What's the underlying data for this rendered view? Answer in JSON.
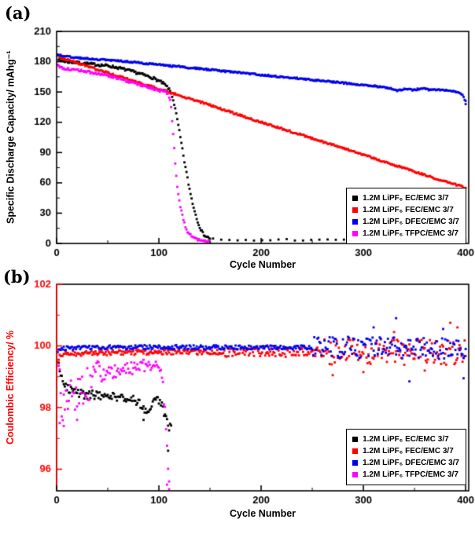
{
  "figure": {
    "background": "#ffffff"
  },
  "chart_data": [
    {
      "type": "scatter",
      "panel_label": "(a)",
      "xlabel": "Cycle Number",
      "ylabel": "Specific Discharge Capacity/ mAhg⁻¹",
      "ylabel_color": "#000000",
      "xlim": [
        0,
        403
      ],
      "ylim": [
        0,
        210
      ],
      "xticks": [
        0,
        100,
        200,
        300,
        400
      ],
      "yticks": [
        0,
        30,
        60,
        90,
        120,
        150,
        180,
        210
      ],
      "xminor": 50,
      "yminor": 15,
      "axis_color": "#000000",
      "yaxis_color": "#000000",
      "xtick_color": "#000000",
      "ytick_color": "#000000",
      "legend": [
        {
          "label": "1.2M LiPF₆ EC/EMC 3/7",
          "color": "#000000"
        },
        {
          "label": "1.2M LiPF₆ FEC/EMC 3/7",
          "color": "#ff0000"
        },
        {
          "label": "1.2M LiPF₆ DFEC/EMC 3/7",
          "color": "#0000ee"
        },
        {
          "label": "1.2M LiPF₆ TFPC/EMC 3/7",
          "color": "#ff00ff"
        }
      ],
      "series": [
        {
          "name": "EC/EMC",
          "color": "#000000",
          "anchors": [
            [
              1,
              188
            ],
            [
              2,
              183
            ],
            [
              4,
              181
            ],
            [
              10,
              180
            ],
            [
              20,
              179
            ],
            [
              30,
              178
            ],
            [
              40,
              177
            ],
            [
              50,
              176
            ],
            [
              60,
              174
            ],
            [
              68,
              172
            ],
            [
              75,
              170
            ],
            [
              82,
              168
            ],
            [
              88,
              166
            ],
            [
              94,
              164
            ],
            [
              100,
              161
            ],
            [
              105,
              158
            ],
            [
              108,
              155
            ],
            [
              111,
              151
            ],
            [
              113,
              146
            ],
            [
              115,
              138
            ],
            [
              117,
              128
            ],
            [
              119,
              117
            ],
            [
              121,
              105
            ],
            [
              123,
              93
            ],
            [
              125,
              81
            ],
            [
              127,
              70
            ],
            [
              129,
              59
            ],
            [
              131,
              49
            ],
            [
              133,
              40
            ],
            [
              135,
              32
            ],
            [
              137,
              25
            ],
            [
              139,
              19
            ],
            [
              141,
              14
            ],
            [
              143,
              10
            ],
            [
              146,
              7
            ],
            [
              150,
              5
            ],
            [
              155,
              4
            ],
            [
              165,
              3
            ],
            [
              180,
              3
            ],
            [
              200,
              3
            ],
            [
              220,
              4
            ],
            [
              250,
              3
            ],
            [
              281,
              4
            ]
          ],
          "segments": [
            {
              "from": 1,
              "to": 150,
              "step": 1,
              "jitter": 1.3
            },
            {
              "from": 153,
              "to": 281,
              "step": 8,
              "jitter": 0.8
            }
          ],
          "extra_points": []
        },
        {
          "name": "FEC/EMC",
          "color": "#ff0000",
          "anchors": [
            [
              1,
              186
            ],
            [
              3,
              184
            ],
            [
              10,
              182
            ],
            [
              50,
              169
            ],
            [
              100,
              153
            ],
            [
              150,
              137
            ],
            [
              200,
              120
            ],
            [
              250,
              104
            ],
            [
              300,
              88
            ],
            [
              350,
              71
            ],
            [
              400,
              55
            ]
          ],
          "segments": [
            {
              "from": 1,
              "to": 400,
              "step": 1,
              "jitter": 0.9
            }
          ],
          "extra_points": []
        },
        {
          "name": "DFEC/EMC",
          "color": "#0000ee",
          "anchors": [
            [
              1,
              187
            ],
            [
              10,
              185
            ],
            [
              30,
              183
            ],
            [
              60,
              181
            ],
            [
              100,
              177
            ],
            [
              140,
              173
            ],
            [
              180,
              169
            ],
            [
              220,
              165
            ],
            [
              260,
              161
            ],
            [
              290,
              158
            ],
            [
              310,
              156
            ],
            [
              325,
              154
            ],
            [
              333,
              151
            ],
            [
              340,
              153
            ],
            [
              350,
              152
            ],
            [
              358,
              154
            ],
            [
              365,
              152
            ],
            [
              375,
              152
            ],
            [
              385,
              151
            ],
            [
              392,
              150
            ],
            [
              397,
              147
            ],
            [
              400,
              141
            ]
          ],
          "segments": [
            {
              "from": 1,
              "to": 400,
              "step": 1,
              "jitter": 0.8
            }
          ],
          "extra_points": [
            [
              400,
              138
            ]
          ]
        },
        {
          "name": "TFPC/EMC",
          "color": "#ff00ff",
          "anchors": [
            [
              1,
              177
            ],
            [
              3,
              175
            ],
            [
              8,
              173
            ],
            [
              15,
              172
            ],
            [
              25,
              171
            ],
            [
              35,
              169
            ],
            [
              45,
              167
            ],
            [
              55,
              165
            ],
            [
              65,
              162
            ],
            [
              75,
              159
            ],
            [
              85,
              156
            ],
            [
              92,
              154
            ],
            [
              98,
              152
            ],
            [
              103,
              151
            ],
            [
              107,
              150
            ],
            [
              109,
              148
            ],
            [
              111,
              143
            ],
            [
              112,
              135
            ],
            [
              113,
              122
            ],
            [
              114,
              108
            ],
            [
              115,
              94
            ],
            [
              116,
              80
            ],
            [
              117,
              67
            ],
            [
              118,
              55
            ],
            [
              120,
              42
            ],
            [
              122,
              32
            ],
            [
              124,
              24
            ],
            [
              126,
              17
            ],
            [
              128,
              12
            ],
            [
              131,
              8
            ],
            [
              134,
              6
            ],
            [
              138,
              4
            ],
            [
              143,
              3
            ],
            [
              150,
              2
            ]
          ],
          "segments": [
            {
              "from": 1,
              "to": 150,
              "step": 1,
              "jitter": 1.2
            }
          ],
          "extra_points": []
        }
      ]
    },
    {
      "type": "scatter",
      "panel_label": "(b)",
      "xlabel": "Cycle Number",
      "ylabel": "Coulombic Efficiency/ %",
      "ylabel_color": "#ff0000",
      "xlim": [
        0,
        403
      ],
      "ylim": [
        95.3,
        102
      ],
      "xticks": [
        0,
        100,
        200,
        300,
        400
      ],
      "yticks": [
        96,
        98,
        100,
        102
      ],
      "xminor": 50,
      "yminor": 1,
      "axis_color": "#000000",
      "yaxis_color": "#ff0000",
      "xtick_color": "#000000",
      "ytick_color": "#ff0000",
      "legend": [
        {
          "label": "1.2M LiPF₆ EC/EMC 3/7",
          "color": "#000000"
        },
        {
          "label": "1.2M LiPF₆ FEC/EMC 3/7",
          "color": "#ff0000"
        },
        {
          "label": "1.2M LiPF₆ DFEC/EMC 3/7",
          "color": "#0000ee"
        },
        {
          "label": "1.2M LiPF₆ TFPC/EMC 3/7",
          "color": "#ff00ff"
        }
      ],
      "series": [
        {
          "name": "EC/EMC",
          "color": "#000000",
          "anchors": [
            [
              2,
              99.35
            ],
            [
              4,
              99.15
            ],
            [
              6,
              98.95
            ],
            [
              9,
              98.75
            ],
            [
              12,
              98.6
            ],
            [
              16,
              98.5
            ],
            [
              22,
              98.45
            ],
            [
              30,
              98.4
            ],
            [
              40,
              98.42
            ],
            [
              50,
              98.38
            ],
            [
              58,
              98.35
            ],
            [
              66,
              98.3
            ],
            [
              74,
              98.28
            ],
            [
              80,
              98.2
            ],
            [
              85,
              98.0
            ],
            [
              89,
              97.85
            ],
            [
              93,
              98.05
            ],
            [
              97,
              98.25
            ],
            [
              101,
              98.2
            ],
            [
              104,
              97.95
            ],
            [
              106,
              97.7
            ],
            [
              108,
              97.5
            ],
            [
              110,
              97.3
            ],
            [
              112,
              97.45
            ]
          ],
          "segments": [
            {
              "from": 2,
              "to": 112,
              "step": 1,
              "jitter": 0.14
            }
          ],
          "extra_points": [
            [
              109,
              96.6
            ],
            [
              85,
              97.6
            ]
          ]
        },
        {
          "name": "FEC/EMC",
          "color": "#ff0000",
          "anchors": [
            [
              1,
              99.55
            ],
            [
              3,
              99.7
            ],
            [
              10,
              99.75
            ],
            [
              50,
              99.78
            ],
            [
              100,
              99.8
            ],
            [
              150,
              99.8
            ],
            [
              200,
              99.8
            ],
            [
              250,
              99.8
            ],
            [
              300,
              99.8
            ],
            [
              350,
              99.8
            ],
            [
              400,
              99.8
            ]
          ],
          "segments": [
            {
              "from": 1,
              "to": 160,
              "step": 1,
              "jitter": 0.08
            },
            {
              "from": 161,
              "to": 260,
              "step": 1,
              "jitter": 0.16
            },
            {
              "from": 261,
              "to": 400,
              "step": 1,
              "jitter": 0.42
            }
          ],
          "extra_points": [
            [
              270,
              99.05
            ],
            [
              300,
              99.15
            ],
            [
              330,
              100.45
            ],
            [
              360,
              99.2
            ],
            [
              385,
              100.75
            ],
            [
              392,
              100.6
            ]
          ]
        },
        {
          "name": "DFEC/EMC",
          "color": "#0000ee",
          "anchors": [
            [
              1,
              99.85
            ],
            [
              5,
              99.92
            ],
            [
              20,
              99.95
            ],
            [
              100,
              99.96
            ],
            [
              200,
              99.95
            ],
            [
              300,
              99.95
            ],
            [
              400,
              99.92
            ]
          ],
          "segments": [
            {
              "from": 1,
              "to": 250,
              "step": 1,
              "jitter": 0.07
            },
            {
              "from": 251,
              "to": 400,
              "step": 1,
              "jitter": 0.35
            }
          ],
          "extra_points": [
            [
              310,
              100.6
            ],
            [
              332,
              100.9
            ],
            [
              345,
              98.85
            ],
            [
              378,
              100.55
            ],
            [
              398,
              98.95
            ]
          ]
        },
        {
          "name": "TFPC/EMC",
          "color": "#ff00ff",
          "anchors": [
            [
              2,
              99.2
            ],
            [
              4,
              98.3
            ],
            [
              6,
              98.0
            ],
            [
              9,
              98.5
            ],
            [
              12,
              98.2
            ],
            [
              15,
              98.35
            ],
            [
              18,
              98.5
            ],
            [
              22,
              98.4
            ],
            [
              26,
              98.6
            ],
            [
              30,
              98.75
            ],
            [
              34,
              98.9
            ],
            [
              38,
              99.0
            ],
            [
              42,
              99.05
            ],
            [
              48,
              99.1
            ],
            [
              55,
              99.15
            ],
            [
              62,
              99.2
            ],
            [
              70,
              99.25
            ],
            [
              78,
              99.3
            ],
            [
              85,
              99.35
            ],
            [
              92,
              99.4
            ],
            [
              97,
              99.45
            ],
            [
              100,
              99.35
            ],
            [
              103,
              99.0
            ],
            [
              105,
              98.3
            ],
            [
              107,
              97.3
            ],
            [
              109,
              96.2
            ],
            [
              110,
              95.5
            ],
            [
              111,
              94.9
            ],
            [
              112,
              94.6
            ]
          ],
          "segments": [
            {
              "from": 2,
              "to": 44,
              "step": 1,
              "jitter": 0.6
            },
            {
              "from": 45,
              "to": 100,
              "step": 1,
              "jitter": 0.22
            },
            {
              "from": 101,
              "to": 112,
              "step": 1,
              "jitter": 0.3
            }
          ],
          "extra_points": [
            [
              3,
              97.5
            ],
            [
              7,
              97.4
            ],
            [
              20,
              97.6
            ],
            [
              108,
              95.5
            ],
            [
              110,
              95.35
            ]
          ]
        }
      ]
    }
  ]
}
